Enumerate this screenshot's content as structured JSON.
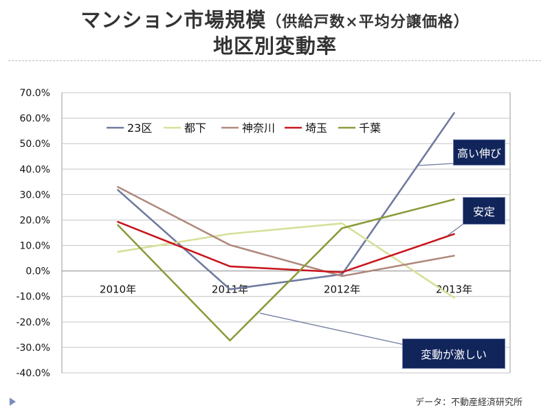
{
  "title_line1": "マンション市場規模",
  "title_line1_sub": "（供給戸数×平均分譲価格）",
  "title_line2": "地区別変動率",
  "source": "データ：不動産経済研究所",
  "annotations": [
    {
      "id": "high-growth",
      "label": "高い伸び",
      "color": "#12255b"
    },
    {
      "id": "stable",
      "label": "安定",
      "color": "#12255b"
    },
    {
      "id": "volatile",
      "label": "変動が激しい",
      "color": "#12255b"
    }
  ],
  "chart_data": {
    "type": "line",
    "categories": [
      "2010年",
      "2011年",
      "2012年",
      "2013年"
    ],
    "ylim": [
      -40,
      70
    ],
    "yticks": [
      -40,
      -30,
      -20,
      -10,
      0,
      10,
      20,
      30,
      40,
      50,
      60,
      70
    ],
    "ytick_labels": [
      "-40.0%",
      "-30.0%",
      "-20.0%",
      "-10.0%",
      "0.0%",
      "10.0%",
      "20.0%",
      "30.0%",
      "40.0%",
      "50.0%",
      "60.0%",
      "70.0%"
    ],
    "grid": true,
    "legend": "top-left",
    "series": [
      {
        "name": "23区",
        "values": [
          31.8,
          -7.2,
          -1.3,
          62.0
        ],
        "color": "#6f7a9e"
      },
      {
        "name": "都下",
        "values": [
          7.5,
          14.6,
          18.7,
          -10.5
        ],
        "color": "#d7df98"
      },
      {
        "name": "神奈川",
        "values": [
          33.0,
          10.2,
          -2.0,
          6.0
        ],
        "color": "#b0897d"
      },
      {
        "name": "埼玉",
        "values": [
          19.3,
          1.8,
          -0.5,
          14.5
        ],
        "color": "#c8161d"
      },
      {
        "name": "千葉",
        "values": [
          18.0,
          -27.3,
          16.8,
          28.1
        ],
        "color": "#8c9a3c"
      }
    ]
  }
}
